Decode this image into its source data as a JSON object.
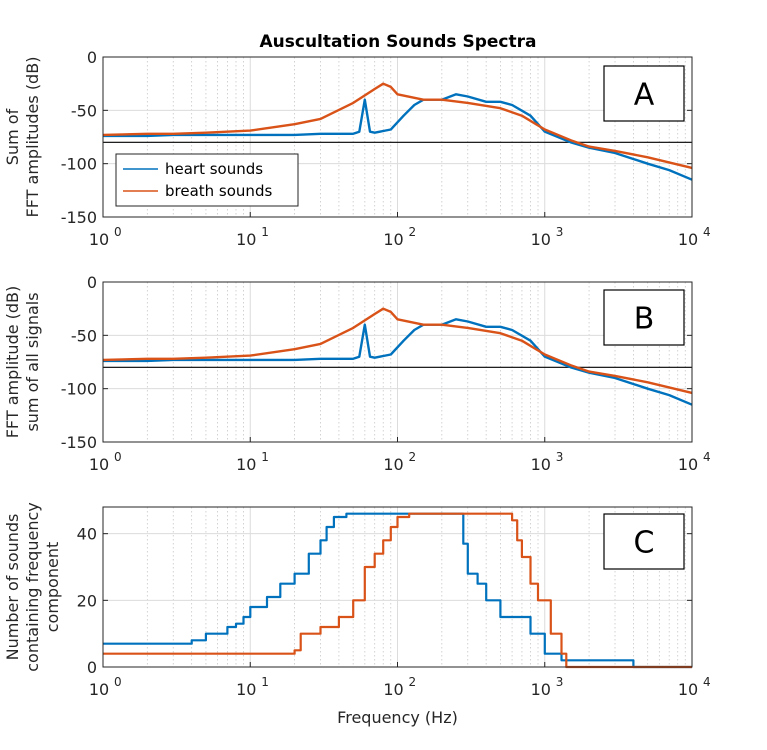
{
  "title": "Auscultation Sounds Spectra",
  "colors": {
    "heart": "#0072BD",
    "breath": "#D95319",
    "ref_line": "#000000",
    "grid": "#c8c8c8"
  },
  "chart_data": [
    {
      "panel": "A",
      "type": "line",
      "xscale": "log",
      "xlim": [
        1,
        10000
      ],
      "ylim": [
        -150,
        0
      ],
      "yticks": [
        0,
        -50,
        -100,
        -150
      ],
      "xticks": [
        "10^0",
        "10^1",
        "10^2",
        "10^3",
        "10^4"
      ],
      "ylabel_lines": [
        "Sum of",
        "FFT amplitudes (dB)"
      ],
      "xlabel": "",
      "box_label": "A",
      "reference_line": -80,
      "legend": {
        "position": "bottom-left",
        "entries": [
          "heart sounds",
          "breath sounds"
        ]
      },
      "series": [
        {
          "name": "heart sounds",
          "color": "#0072BD",
          "x": [
            1,
            2,
            3,
            5,
            10,
            20,
            30,
            40,
            50,
            55,
            60,
            65,
            70,
            90,
            110,
            130,
            150,
            200,
            250,
            300,
            400,
            500,
            600,
            800,
            1000,
            1500,
            2000,
            3000,
            5000,
            7000,
            10000
          ],
          "y": [
            -74,
            -74,
            -73,
            -73,
            -73,
            -73,
            -72,
            -72,
            -72,
            -70,
            -40,
            -70,
            -71,
            -68,
            -55,
            -45,
            -40,
            -40,
            -35,
            -37,
            -42,
            -42,
            -45,
            -55,
            -70,
            -80,
            -85,
            -90,
            -100,
            -106,
            -115
          ],
          "spikes": [
            [
              25,
              -65
            ],
            [
              60,
              -40
            ]
          ]
        },
        {
          "name": "breath sounds",
          "color": "#D95319",
          "x": [
            1,
            2,
            3,
            5,
            10,
            20,
            30,
            50,
            70,
            80,
            90,
            100,
            150,
            200,
            300,
            500,
            700,
            1000,
            1500,
            2000,
            3000,
            5000,
            10000
          ],
          "y": [
            -73,
            -72,
            -72,
            -71,
            -69,
            -63,
            -58,
            -43,
            -30,
            -25,
            -28,
            -35,
            -40,
            -40,
            -43,
            -48,
            -55,
            -68,
            -78,
            -84,
            -88,
            -94,
            -104
          ]
        }
      ]
    },
    {
      "panel": "B",
      "type": "line",
      "xscale": "log",
      "xlim": [
        1,
        10000
      ],
      "ylim": [
        -150,
        0
      ],
      "yticks": [
        0,
        -50,
        -100,
        -150
      ],
      "xticks": [
        "10^0",
        "10^1",
        "10^2",
        "10^3",
        "10^4"
      ],
      "ylabel_lines": [
        "FFT amplitude (dB)",
        "sum of all signals"
      ],
      "xlabel": "",
      "box_label": "B",
      "reference_line": -80,
      "series": [
        {
          "name": "heart sounds",
          "color": "#0072BD",
          "x": [
            1,
            2,
            3,
            5,
            10,
            20,
            30,
            40,
            50,
            55,
            60,
            65,
            70,
            90,
            110,
            130,
            150,
            200,
            250,
            300,
            400,
            500,
            600,
            800,
            1000,
            1500,
            2000,
            3000,
            5000,
            7000,
            10000
          ],
          "y": [
            -74,
            -74,
            -73,
            -73,
            -73,
            -73,
            -72,
            -72,
            -72,
            -70,
            -40,
            -70,
            -71,
            -68,
            -55,
            -45,
            -40,
            -40,
            -35,
            -37,
            -42,
            -42,
            -45,
            -55,
            -70,
            -80,
            -85,
            -90,
            -100,
            -106,
            -115
          ],
          "spikes": [
            [
              25,
              -65
            ],
            [
              60,
              -40
            ]
          ]
        },
        {
          "name": "breath sounds",
          "color": "#D95319",
          "x": [
            1,
            2,
            3,
            5,
            10,
            20,
            30,
            50,
            70,
            80,
            90,
            100,
            150,
            200,
            300,
            500,
            700,
            1000,
            1500,
            2000,
            3000,
            5000,
            10000
          ],
          "y": [
            -73,
            -72,
            -72,
            -71,
            -69,
            -63,
            -58,
            -43,
            -30,
            -25,
            -28,
            -35,
            -40,
            -40,
            -43,
            -48,
            -55,
            -68,
            -78,
            -84,
            -88,
            -94,
            -104
          ]
        }
      ]
    },
    {
      "panel": "C",
      "type": "line",
      "xscale": "log",
      "xlim": [
        1,
        10000
      ],
      "ylim": [
        0,
        48
      ],
      "yticks": [
        0,
        20,
        40
      ],
      "xticks": [
        "10^0",
        "10^1",
        "10^2",
        "10^3",
        "10^4"
      ],
      "ylabel_lines": [
        "Number of sounds",
        "containing frequency",
        "component"
      ],
      "xlabel": "Frequency (Hz)",
      "box_label": "C",
      "series": [
        {
          "name": "heart sounds",
          "color": "#0072BD",
          "x": [
            1,
            3,
            4,
            5,
            7,
            8,
            9,
            10,
            13,
            16,
            20,
            25,
            30,
            33,
            37,
            45,
            55,
            250,
            280,
            300,
            350,
            400,
            500,
            600,
            800,
            1000,
            1300,
            1500,
            2000,
            4000,
            10000
          ],
          "y": [
            7,
            7,
            8,
            10,
            12,
            13,
            15,
            18,
            21,
            25,
            28,
            34,
            38,
            42,
            45,
            46,
            46,
            46,
            37,
            28,
            25,
            20,
            15,
            15,
            10,
            4,
            2,
            2,
            2,
            0,
            0
          ]
        },
        {
          "name": "breath sounds",
          "color": "#D95319",
          "x": [
            1,
            6,
            20,
            22,
            30,
            40,
            50,
            60,
            70,
            80,
            90,
            100,
            120,
            500,
            600,
            650,
            700,
            800,
            900,
            1100,
            1300,
            1400,
            10000
          ],
          "y": [
            4,
            4,
            5,
            10,
            12,
            15,
            20,
            30,
            34,
            38,
            42,
            45,
            46,
            46,
            44,
            38,
            33,
            25,
            20,
            10,
            4,
            0,
            0
          ]
        }
      ]
    }
  ]
}
